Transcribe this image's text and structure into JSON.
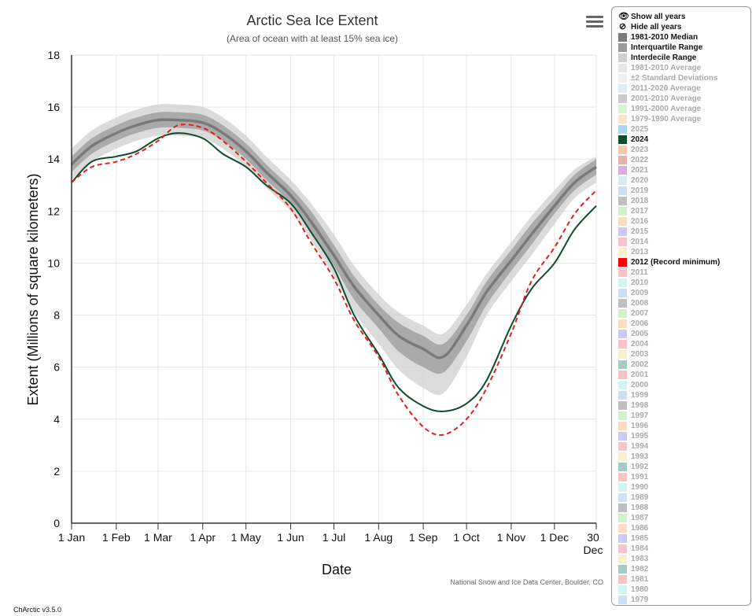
{
  "chart_data": {
    "type": "line",
    "title": "Arctic Sea Ice Extent",
    "subtitle": "(Area of ocean with at least 15% sea ice)",
    "xlabel": "Date",
    "ylabel": "Extent (Millions of square kilometers)",
    "ylim": [
      0,
      18
    ],
    "yticks": [
      0,
      2,
      4,
      6,
      8,
      10,
      12,
      14,
      16,
      18
    ],
    "xlim": [
      "2024-01-01",
      "2024-12-30"
    ],
    "xticks": [
      {
        "date": "2024-01-01",
        "label": "1 Jan"
      },
      {
        "date": "2024-02-01",
        "label": "1 Feb"
      },
      {
        "date": "2024-03-01",
        "label": "1 Mar"
      },
      {
        "date": "2024-04-01",
        "label": "1 Apr"
      },
      {
        "date": "2024-05-01",
        "label": "1 May"
      },
      {
        "date": "2024-06-01",
        "label": "1 Jun"
      },
      {
        "date": "2024-07-01",
        "label": "1 Jul"
      },
      {
        "date": "2024-08-01",
        "label": "1 Aug"
      },
      {
        "date": "2024-09-01",
        "label": "1 Sep"
      },
      {
        "date": "2024-10-01",
        "label": "1 Oct"
      },
      {
        "date": "2024-11-01",
        "label": "1 Nov"
      },
      {
        "date": "2024-12-01",
        "label": "1 Dec"
      },
      {
        "date": "2024-12-30",
        "label": "30 Dec"
      }
    ],
    "grid": true,
    "legend_position": "right",
    "dates": [
      "2024-01-01",
      "2024-01-15",
      "2024-02-01",
      "2024-02-15",
      "2024-03-01",
      "2024-03-15",
      "2024-04-01",
      "2024-04-15",
      "2024-05-01",
      "2024-05-15",
      "2024-06-01",
      "2024-06-15",
      "2024-07-01",
      "2024-07-15",
      "2024-08-01",
      "2024-08-15",
      "2024-09-01",
      "2024-09-15",
      "2024-10-01",
      "2024-10-15",
      "2024-11-01",
      "2024-11-15",
      "2024-12-01",
      "2024-12-15",
      "2024-12-30"
    ],
    "series": [
      {
        "name": "1981-2010 Median",
        "style": "band-center",
        "color": "#7a7a7a",
        "values": [
          13.8,
          14.5,
          15.0,
          15.3,
          15.5,
          15.5,
          15.4,
          15.0,
          14.3,
          13.5,
          12.6,
          11.6,
          10.3,
          9.1,
          8.0,
          7.2,
          6.7,
          6.4,
          7.6,
          8.9,
          10.1,
          11.1,
          12.2,
          13.1,
          13.7
        ]
      },
      {
        "name": "Interquartile Range",
        "style": "band",
        "color": "#9a9a9a",
        "lower": [
          13.5,
          14.2,
          14.7,
          15.0,
          15.2,
          15.2,
          15.1,
          14.7,
          14.0,
          13.2,
          12.3,
          11.2,
          9.9,
          8.6,
          7.5,
          6.6,
          6.0,
          5.8,
          7.0,
          8.4,
          9.7,
          10.7,
          11.9,
          12.8,
          13.4
        ],
        "upper": [
          14.1,
          14.8,
          15.3,
          15.6,
          15.8,
          15.8,
          15.7,
          15.3,
          14.6,
          13.8,
          12.9,
          12.0,
          10.7,
          9.5,
          8.4,
          7.7,
          7.2,
          6.9,
          8.0,
          9.3,
          10.5,
          11.5,
          12.5,
          13.4,
          14.0
        ]
      },
      {
        "name": "Interdecile Range",
        "style": "band",
        "color": "#cfcfcf",
        "lower": [
          13.2,
          13.9,
          14.4,
          14.7,
          14.9,
          14.9,
          14.8,
          14.4,
          13.7,
          12.9,
          12.0,
          10.9,
          9.5,
          8.1,
          6.9,
          5.9,
          5.2,
          5.0,
          6.4,
          8.0,
          9.3,
          10.3,
          11.5,
          12.5,
          13.1
        ],
        "upper": [
          14.4,
          15.1,
          15.6,
          15.9,
          16.1,
          16.1,
          16.0,
          15.6,
          14.9,
          14.1,
          13.2,
          12.3,
          11.1,
          9.9,
          8.8,
          8.1,
          7.6,
          7.3,
          8.4,
          9.6,
          10.8,
          11.8,
          12.8,
          13.6,
          14.1
        ]
      },
      {
        "name": "2024",
        "style": "solid",
        "color": "#0e4d2c",
        "values": [
          13.1,
          13.9,
          14.1,
          14.3,
          14.8,
          15.0,
          14.8,
          14.2,
          13.7,
          13.0,
          12.3,
          11.2,
          9.8,
          8.0,
          6.5,
          5.2,
          4.5,
          4.3,
          4.6,
          5.5,
          7.6,
          9.0,
          10.0,
          11.3,
          12.2
        ]
      },
      {
        "name": "2012 (Record minimum)",
        "style": "dashed",
        "color": "#e02020",
        "values": [
          13.1,
          13.7,
          13.9,
          14.2,
          14.7,
          15.3,
          15.2,
          14.7,
          13.9,
          13.1,
          12.1,
          10.8,
          9.4,
          7.8,
          6.4,
          4.9,
          3.7,
          3.4,
          4.0,
          5.2,
          7.3,
          9.3,
          10.6,
          11.9,
          12.8
        ]
      }
    ]
  },
  "ui": {
    "menu_icon": "hamburger-menu-icon",
    "credit": "National Snow and Ice Data Center, Boulder, CO",
    "version": "ChArctic v3.5.0"
  },
  "legend": {
    "show_all": "Show all years",
    "hide_all": "Hide all years",
    "items": [
      {
        "label": "1981-2010 Median",
        "color": "#7a7a7a",
        "on": true
      },
      {
        "label": "Interquartile Range",
        "color": "#9a9a9a",
        "on": true
      },
      {
        "label": "Interdecile Range",
        "color": "#cfcfcf",
        "on": true
      },
      {
        "label": "1981-2010 Average",
        "color": "#c8c8c8",
        "on": false
      },
      {
        "label": "±2 Standard Deviations",
        "color": "#dddddd",
        "on": false
      },
      {
        "label": "2011-2020 Average",
        "color": "#b8d4ec",
        "on": false
      },
      {
        "label": "2001-2010 Average",
        "color": "#8c8c8c",
        "on": false
      },
      {
        "label": "1991-2000 Average",
        "color": "#a8e4a0",
        "on": false
      },
      {
        "label": "1979-1990 Average",
        "color": "#f4c08c",
        "on": false
      },
      {
        "label": "2025",
        "color": "#4aa0e8",
        "on": false
      },
      {
        "label": "2024",
        "color": "#0e4d2c",
        "on": true
      },
      {
        "label": "2023",
        "color": "#f08a3c",
        "on": false
      },
      {
        "label": "2022",
        "color": "#c0584a",
        "on": false
      },
      {
        "label": "2021",
        "color": "#b04ab8",
        "on": false
      },
      {
        "label": "2020",
        "color": "#9ed4ec",
        "on": false
      },
      {
        "label": "2019",
        "color": "#8cb8e4",
        "on": false
      },
      {
        "label": "2018",
        "color": "#707070",
        "on": false
      },
      {
        "label": "2017",
        "color": "#98e08c",
        "on": false
      },
      {
        "label": "2016",
        "color": "#f4b07c",
        "on": false
      },
      {
        "label": "2015",
        "color": "#8a8ae4",
        "on": false
      },
      {
        "label": "2014",
        "color": "#ec7c8c",
        "on": false
      },
      {
        "label": "2013",
        "color": "#f0dc8c",
        "on": false
      },
      {
        "label": "2012 (Record minimum)",
        "color": "#ff0000",
        "on": true
      },
      {
        "label": "2011",
        "color": "#ec7c7c",
        "on": false
      },
      {
        "label": "2010",
        "color": "#9ce4dc",
        "on": false
      },
      {
        "label": "2009",
        "color": "#8cb8ec",
        "on": false
      },
      {
        "label": "2008",
        "color": "#707070",
        "on": false
      },
      {
        "label": "2007",
        "color": "#98e08c",
        "on": false
      },
      {
        "label": "2006",
        "color": "#f4b07c",
        "on": false
      },
      {
        "label": "2005",
        "color": "#8a8ae4",
        "on": false
      },
      {
        "label": "2004",
        "color": "#ec7c8c",
        "on": false
      },
      {
        "label": "2003",
        "color": "#f0dc8c",
        "on": false
      },
      {
        "label": "2002",
        "color": "#3a8a7c",
        "on": false
      },
      {
        "label": "2001",
        "color": "#ec7c7c",
        "on": false
      },
      {
        "label": "2000",
        "color": "#9ce4dc",
        "on": false
      },
      {
        "label": "1999",
        "color": "#8cb8ec",
        "on": false
      },
      {
        "label": "1998",
        "color": "#707070",
        "on": false
      },
      {
        "label": "1997",
        "color": "#98e08c",
        "on": false
      },
      {
        "label": "1996",
        "color": "#f4b07c",
        "on": false
      },
      {
        "label": "1995",
        "color": "#8a8ae4",
        "on": false
      },
      {
        "label": "1994",
        "color": "#ec7c8c",
        "on": false
      },
      {
        "label": "1993",
        "color": "#f0dc8c",
        "on": false
      },
      {
        "label": "1992",
        "color": "#3a8a7c",
        "on": false
      },
      {
        "label": "1991",
        "color": "#ec7c7c",
        "on": false
      },
      {
        "label": "1990",
        "color": "#9ce4dc",
        "on": false
      },
      {
        "label": "1989",
        "color": "#8cb8ec",
        "on": false
      },
      {
        "label": "1988",
        "color": "#707070",
        "on": false
      },
      {
        "label": "1987",
        "color": "#98e08c",
        "on": false
      },
      {
        "label": "1986",
        "color": "#f4b07c",
        "on": false
      },
      {
        "label": "1985",
        "color": "#8a8ae4",
        "on": false
      },
      {
        "label": "1984",
        "color": "#ec7c8c",
        "on": false
      },
      {
        "label": "1983",
        "color": "#f0dc8c",
        "on": false
      },
      {
        "label": "1982",
        "color": "#3a8a7c",
        "on": false
      },
      {
        "label": "1981",
        "color": "#ec7c7c",
        "on": false
      },
      {
        "label": "1980",
        "color": "#9ce4dc",
        "on": false
      },
      {
        "label": "1979",
        "color": "#8cb8ec",
        "on": false
      }
    ]
  }
}
